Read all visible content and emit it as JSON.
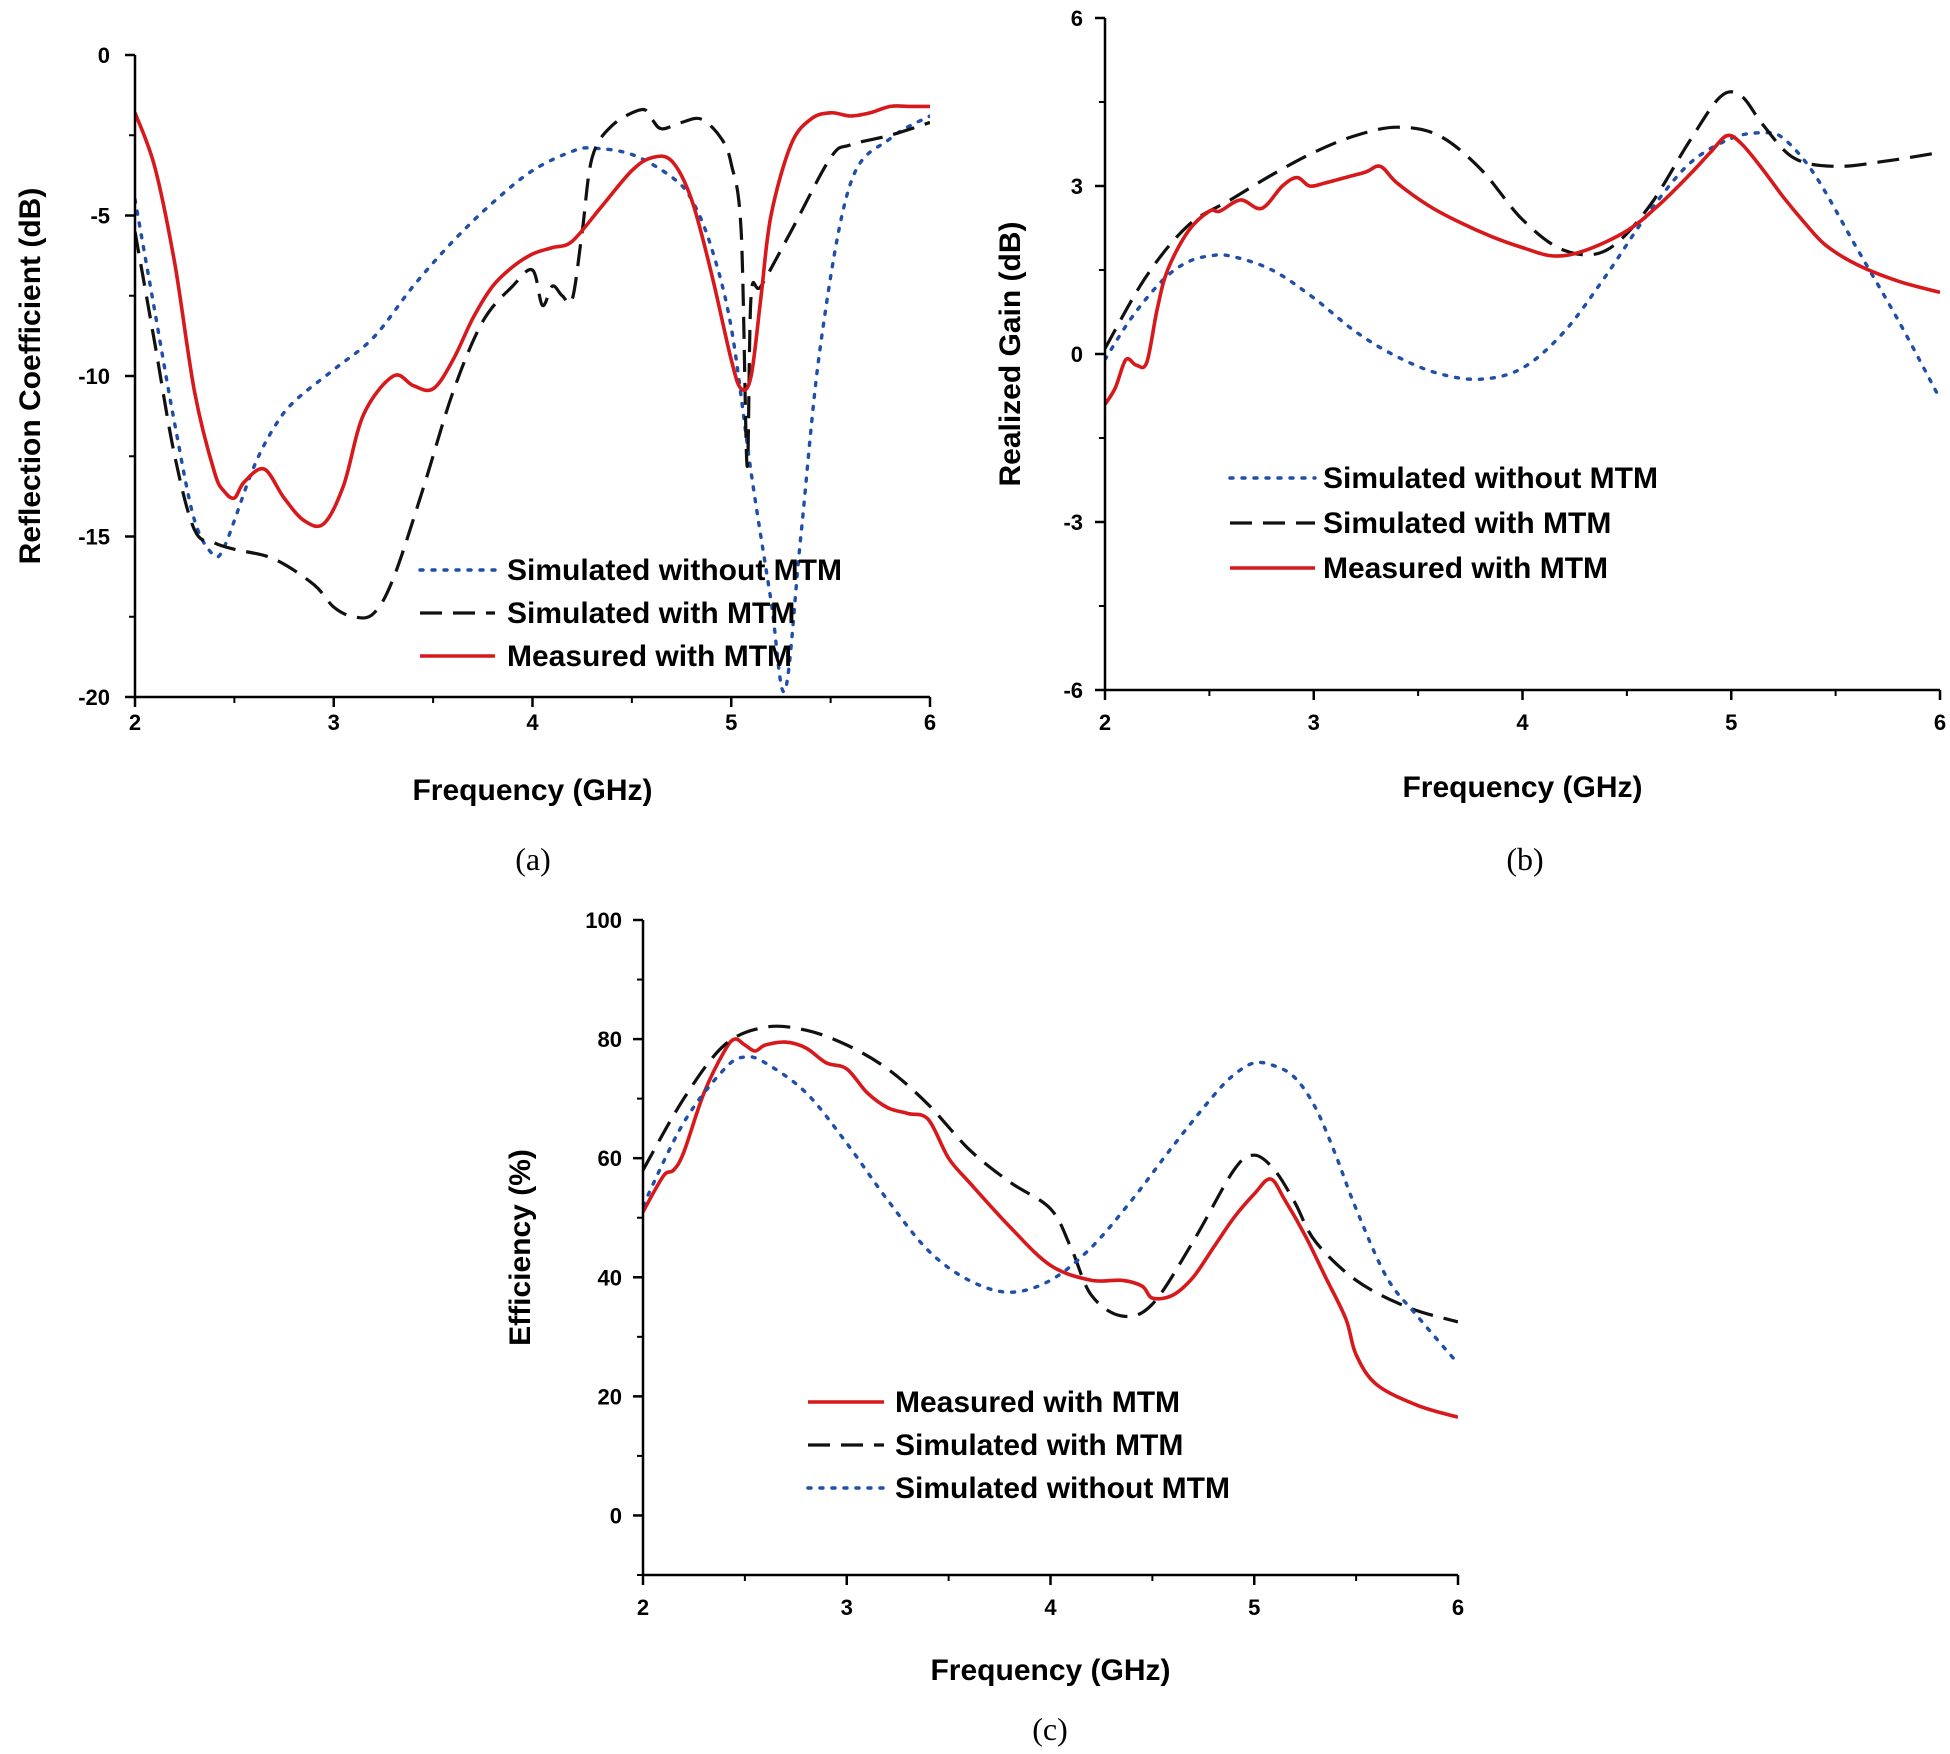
{
  "colors": {
    "measured": "#d7191c",
    "simulated_with": "#111111",
    "simulated_without": "#1f4fa8"
  },
  "chart_data": [
    {
      "panel": "a",
      "caption": "(a)",
      "type": "line",
      "xlabel": "Frequency (GHz)",
      "ylabel": "Reflection Coefficient (dB)",
      "xlim": [
        2,
        6
      ],
      "ylim": [
        -20,
        0
      ],
      "xticks": [
        2,
        3,
        4,
        5,
        6
      ],
      "yticks": [
        0,
        -5,
        -10,
        -15,
        -20
      ],
      "xtick_labels": [
        "2",
        "3",
        "4",
        "5",
        "6"
      ],
      "ytick_labels": [
        "0",
        "-5",
        "-10",
        "-15",
        "-20"
      ],
      "minor_x": [
        2.5,
        3.5,
        4.5,
        5.5
      ],
      "minor_y": [
        -2.5,
        -7.5,
        -12.5,
        -17.5
      ],
      "legend": [
        "Simulated without MTM",
        "Simulated with MTM",
        "Measured with MTM"
      ],
      "series": [
        {
          "name": "Simulated without MTM",
          "style": "dotted",
          "color_key": "simulated_without",
          "x": [
            2.0,
            2.1,
            2.2,
            2.3,
            2.4,
            2.45,
            2.5,
            2.6,
            2.7,
            2.8,
            3.0,
            3.2,
            3.4,
            3.6,
            3.8,
            4.0,
            4.2,
            4.3,
            4.5,
            4.7,
            4.8,
            4.9,
            5.0,
            5.1,
            5.2,
            5.27,
            5.35,
            5.45,
            5.6,
            5.8,
            6.0
          ],
          "y": [
            -4.5,
            -8.0,
            -11.5,
            -14.5,
            -15.6,
            -15.3,
            -14.5,
            -12.8,
            -11.6,
            -10.8,
            -9.8,
            -8.8,
            -7.2,
            -5.8,
            -4.6,
            -3.6,
            -3.0,
            -2.9,
            -3.1,
            -3.8,
            -4.5,
            -6.0,
            -8.5,
            -13.0,
            -17.0,
            -19.8,
            -15.0,
            -9.0,
            -4.0,
            -2.6,
            -1.9
          ]
        },
        {
          "name": "Simulated with MTM",
          "style": "dashed",
          "color_key": "simulated_with",
          "x": [
            2.0,
            2.1,
            2.2,
            2.3,
            2.4,
            2.5,
            2.7,
            2.9,
            3.0,
            3.1,
            3.2,
            3.3,
            3.45,
            3.6,
            3.75,
            3.9,
            4.0,
            4.05,
            4.1,
            4.15,
            4.2,
            4.25,
            4.3,
            4.4,
            4.55,
            4.6,
            4.65,
            4.75,
            4.85,
            4.95,
            5.0,
            5.05,
            5.08,
            5.1,
            5.15,
            5.3,
            5.5,
            5.6,
            5.8,
            6.0
          ],
          "y": [
            -5.5,
            -9.0,
            -12.5,
            -14.8,
            -15.2,
            -15.4,
            -15.7,
            -16.5,
            -17.2,
            -17.5,
            -17.4,
            -16.3,
            -13.5,
            -10.5,
            -8.3,
            -7.2,
            -6.7,
            -7.8,
            -7.2,
            -7.5,
            -7.6,
            -5.5,
            -3.2,
            -2.2,
            -1.7,
            -2.0,
            -2.3,
            -2.1,
            -2.0,
            -2.6,
            -3.4,
            -5.5,
            -12.8,
            -7.5,
            -7.2,
            -5.5,
            -3.2,
            -2.8,
            -2.5,
            -2.1
          ]
        },
        {
          "name": "Measured with MTM",
          "style": "solid",
          "color_key": "measured",
          "x": [
            2.0,
            2.1,
            2.2,
            2.3,
            2.4,
            2.45,
            2.5,
            2.55,
            2.65,
            2.75,
            2.85,
            2.95,
            3.05,
            3.15,
            3.3,
            3.4,
            3.5,
            3.6,
            3.7,
            3.8,
            3.9,
            4.0,
            4.1,
            4.2,
            4.35,
            4.5,
            4.6,
            4.7,
            4.8,
            4.9,
            5.0,
            5.05,
            5.1,
            5.15,
            5.2,
            5.3,
            5.4,
            5.5,
            5.6,
            5.7,
            5.8,
            5.9,
            6.0
          ],
          "y": [
            -1.8,
            -3.5,
            -6.5,
            -10.5,
            -13.0,
            -13.6,
            -13.8,
            -13.3,
            -12.9,
            -13.8,
            -14.5,
            -14.6,
            -13.4,
            -11.2,
            -10.0,
            -10.3,
            -10.4,
            -9.5,
            -8.2,
            -7.2,
            -6.6,
            -6.2,
            -6.0,
            -5.8,
            -4.7,
            -3.6,
            -3.2,
            -3.3,
            -4.5,
            -6.8,
            -9.5,
            -10.4,
            -10.0,
            -7.5,
            -5.0,
            -2.8,
            -2.0,
            -1.8,
            -1.9,
            -1.8,
            -1.6,
            -1.6,
            -1.6
          ]
        }
      ]
    },
    {
      "panel": "b",
      "caption": "(b)",
      "type": "line",
      "xlabel": "Frequency (GHz)",
      "ylabel": "Realized Gain (dB)",
      "xlim": [
        2,
        6
      ],
      "ylim": [
        -6,
        6
      ],
      "xticks": [
        2,
        3,
        4,
        5,
        6
      ],
      "yticks": [
        6,
        3,
        0,
        -3,
        -6
      ],
      "xtick_labels": [
        "2",
        "3",
        "4",
        "5",
        "6"
      ],
      "ytick_labels": [
        "6",
        "3",
        "0",
        "-3",
        "-6"
      ],
      "minor_x": [
        2.5,
        3.5,
        4.5,
        5.5
      ],
      "minor_y": [
        4.5,
        1.5,
        -1.5,
        -4.5
      ],
      "legend": [
        "Simulated without MTM",
        "Simulated with MTM",
        "Measured with MTM"
      ],
      "series": [
        {
          "name": "Simulated without MTM",
          "style": "dotted",
          "color_key": "simulated_without",
          "x": [
            2.0,
            2.1,
            2.2,
            2.3,
            2.4,
            2.5,
            2.6,
            2.8,
            3.0,
            3.2,
            3.4,
            3.6,
            3.8,
            4.0,
            4.2,
            4.4,
            4.6,
            4.8,
            5.0,
            5.15,
            5.25,
            5.4,
            5.6,
            5.8,
            6.0
          ],
          "y": [
            -0.1,
            0.5,
            1.0,
            1.4,
            1.65,
            1.75,
            1.75,
            1.5,
            1.0,
            0.4,
            -0.05,
            -0.35,
            -0.45,
            -0.25,
            0.4,
            1.4,
            2.5,
            3.4,
            3.85,
            3.95,
            3.85,
            3.2,
            1.9,
            0.6,
            -0.8
          ]
        },
        {
          "name": "Simulated with MTM",
          "style": "dashed",
          "color_key": "simulated_with",
          "x": [
            2.0,
            2.2,
            2.4,
            2.6,
            2.8,
            3.0,
            3.2,
            3.4,
            3.6,
            3.8,
            4.0,
            4.2,
            4.4,
            4.6,
            4.8,
            4.95,
            5.05,
            5.15,
            5.3,
            5.5,
            5.75,
            6.0
          ],
          "y": [
            0.1,
            1.4,
            2.3,
            2.75,
            3.2,
            3.6,
            3.9,
            4.05,
            3.9,
            3.3,
            2.4,
            1.85,
            1.85,
            2.6,
            3.8,
            4.6,
            4.6,
            4.1,
            3.5,
            3.35,
            3.45,
            3.6
          ]
        },
        {
          "name": "Measured with MTM",
          "style": "solid",
          "color_key": "measured",
          "x": [
            2.0,
            2.05,
            2.1,
            2.15,
            2.2,
            2.25,
            2.3,
            2.4,
            2.5,
            2.55,
            2.65,
            2.75,
            2.85,
            2.92,
            2.98,
            3.05,
            3.15,
            3.25,
            3.32,
            3.4,
            3.55,
            3.7,
            3.85,
            4.0,
            4.15,
            4.3,
            4.5,
            4.65,
            4.8,
            4.9,
            4.98,
            5.05,
            5.15,
            5.25,
            5.35,
            5.45,
            5.6,
            5.8,
            6.0
          ],
          "y": [
            -0.9,
            -0.6,
            -0.1,
            -0.2,
            -0.15,
            0.8,
            1.5,
            2.2,
            2.55,
            2.55,
            2.75,
            2.6,
            3.0,
            3.15,
            3.0,
            3.05,
            3.15,
            3.25,
            3.35,
            3.05,
            2.65,
            2.35,
            2.1,
            1.9,
            1.75,
            1.85,
            2.2,
            2.65,
            3.2,
            3.6,
            3.9,
            3.75,
            3.3,
            2.8,
            2.35,
            1.95,
            1.6,
            1.3,
            1.1
          ]
        }
      ]
    },
    {
      "panel": "c",
      "caption": "(c)",
      "type": "line",
      "xlabel": "Frequency (GHz)",
      "ylabel": "Efficiency (%)",
      "xlim": [
        2,
        6
      ],
      "ylim": [
        -10,
        100
      ],
      "xticks": [
        2,
        3,
        4,
        5,
        6
      ],
      "yticks": [
        100,
        80,
        60,
        40,
        20,
        0
      ],
      "xtick_labels": [
        "2",
        "3",
        "4",
        "5",
        "6"
      ],
      "ytick_labels": [
        "100",
        "80",
        "60",
        "40",
        "20",
        "0"
      ],
      "minor_x": [
        2.5,
        3.5,
        4.5,
        5.5
      ],
      "minor_y": [
        90,
        70,
        50,
        30,
        10,
        -10
      ],
      "legend": [
        "Measured with MTM",
        "Simulated with MTM",
        "Simulated without MTM"
      ],
      "series": [
        {
          "name": "Measured with MTM",
          "style": "solid",
          "color_key": "measured",
          "x": [
            2.0,
            2.1,
            2.15,
            2.2,
            2.3,
            2.4,
            2.45,
            2.5,
            2.55,
            2.6,
            2.7,
            2.8,
            2.9,
            3.0,
            3.1,
            3.2,
            3.3,
            3.4,
            3.5,
            3.6,
            3.8,
            4.0,
            4.2,
            4.35,
            4.45,
            4.5,
            4.6,
            4.7,
            4.8,
            4.9,
            5.0,
            5.08,
            5.15,
            5.25,
            5.35,
            5.45,
            5.5,
            5.6,
            5.8,
            6.0
          ],
          "y": [
            51,
            57,
            58,
            61,
            71,
            78,
            80,
            79,
            78,
            79,
            79.5,
            78.5,
            76,
            75,
            71,
            68.5,
            67.5,
            66.5,
            60,
            56,
            48.5,
            42,
            39.5,
            39.5,
            38.5,
            36.5,
            37,
            40,
            45,
            50,
            54,
            56.5,
            53,
            47,
            40,
            33,
            27,
            22,
            18.5,
            16.5
          ]
        },
        {
          "name": "Simulated with MTM",
          "style": "dashed",
          "color_key": "simulated_with",
          "x": [
            2.0,
            2.2,
            2.4,
            2.6,
            2.8,
            3.0,
            3.2,
            3.4,
            3.6,
            3.8,
            4.0,
            4.1,
            4.2,
            4.35,
            4.5,
            4.7,
            4.9,
            5.0,
            5.1,
            5.2,
            5.3,
            5.5,
            5.75,
            6.0
          ],
          "y": [
            58,
            70,
            79,
            82,
            81.5,
            79,
            75,
            69,
            61.5,
            56,
            51.5,
            45,
            37,
            33.5,
            35.5,
            46,
            58,
            60.5,
            58,
            52.5,
            46,
            39.5,
            35,
            32.5
          ]
        },
        {
          "name": "Simulated without MTM",
          "style": "dotted",
          "color_key": "simulated_without",
          "x": [
            2.0,
            2.2,
            2.4,
            2.5,
            2.6,
            2.8,
            3.0,
            3.2,
            3.4,
            3.6,
            3.8,
            4.0,
            4.2,
            4.4,
            4.6,
            4.8,
            4.9,
            5.0,
            5.1,
            5.2,
            5.3,
            5.4,
            5.5,
            5.65,
            5.8,
            6.0
          ],
          "y": [
            52,
            66,
            75,
            77,
            76,
            71,
            62.5,
            53,
            44.5,
            39.5,
            37.5,
            39.5,
            45,
            53,
            62,
            70.5,
            74,
            76,
            75.5,
            73.5,
            68.5,
            60.5,
            51.5,
            40,
            33.5,
            25.5
          ]
        }
      ]
    }
  ]
}
